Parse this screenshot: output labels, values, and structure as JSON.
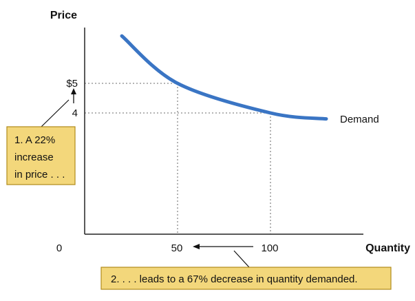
{
  "colors": {
    "curve": "#3a75c4",
    "note_fill": "#f3d77b",
    "note_border": "#b08a1a",
    "guide": "#888888",
    "axis": "#222222"
  },
  "chart_data": {
    "type": "line",
    "title": "",
    "xlabel": "Quantity",
    "ylabel": "Price",
    "series": [
      {
        "name": "Demand",
        "points": [
          {
            "x": 20,
            "y": 6.6
          },
          {
            "x": 50,
            "y": 5
          },
          {
            "x": 100,
            "y": 4
          },
          {
            "x": 130,
            "y": 3.8
          }
        ]
      }
    ],
    "x_ticks": [
      {
        "value": 0,
        "label": "0"
      },
      {
        "value": 50,
        "label": "50"
      },
      {
        "value": 100,
        "label": "100"
      }
    ],
    "y_ticks": [
      {
        "value": 5,
        "label": "$5"
      },
      {
        "value": 4,
        "label": "4"
      }
    ],
    "guides": [
      {
        "x": 50,
        "y": 5
      },
      {
        "x": 100,
        "y": 4
      }
    ],
    "annotations": [
      {
        "id": "price-note",
        "lines": [
          "1. A 22%",
          "increase",
          "in price . . ."
        ]
      },
      {
        "id": "quantity-note",
        "lines": [
          "2. . . . leads to a 67% decrease in quantity demanded."
        ]
      }
    ]
  }
}
